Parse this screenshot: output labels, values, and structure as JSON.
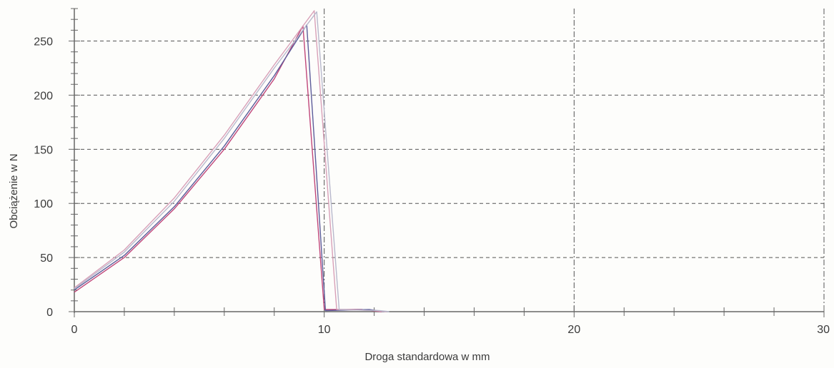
{
  "chart_data": {
    "type": "line",
    "xlabel": "Droga standardowa w mm",
    "ylabel": "Obciążenie w N",
    "xlim": [
      0,
      30
    ],
    "ylim": [
      0,
      280
    ],
    "x_ticks": [
      0,
      10,
      20,
      30
    ],
    "y_ticks": [
      0,
      50,
      100,
      150,
      200,
      250
    ],
    "grid": true,
    "series": [
      {
        "color": "#c0477a",
        "points": [
          [
            0,
            18
          ],
          [
            2,
            50
          ],
          [
            4,
            95
          ],
          [
            6,
            150
          ],
          [
            8,
            215
          ],
          [
            9.15,
            264
          ],
          [
            10.0,
            2
          ],
          [
            11.5,
            2
          ],
          [
            12.3,
            0
          ]
        ]
      },
      {
        "color": "#5c5c9a",
        "points": [
          [
            0,
            20
          ],
          [
            2,
            52
          ],
          [
            4,
            97
          ],
          [
            6,
            153
          ],
          [
            8,
            218
          ],
          [
            9.3,
            265
          ],
          [
            10.05,
            1
          ],
          [
            11.8,
            2
          ],
          [
            12.4,
            0
          ]
        ]
      },
      {
        "color": "#d8a0b8",
        "points": [
          [
            0,
            22
          ],
          [
            2,
            57
          ],
          [
            4,
            105
          ],
          [
            6,
            163
          ],
          [
            8,
            228
          ],
          [
            9.6,
            278
          ],
          [
            10.5,
            2
          ],
          [
            12.0,
            1
          ],
          [
            12.5,
            0
          ]
        ]
      },
      {
        "color": "#b8b8cc",
        "points": [
          [
            0,
            21
          ],
          [
            2,
            55
          ],
          [
            4,
            102
          ],
          [
            6,
            160
          ],
          [
            8,
            225
          ],
          [
            9.7,
            277
          ],
          [
            10.6,
            2
          ],
          [
            12.2,
            1
          ],
          [
            12.6,
            0
          ]
        ]
      }
    ]
  }
}
